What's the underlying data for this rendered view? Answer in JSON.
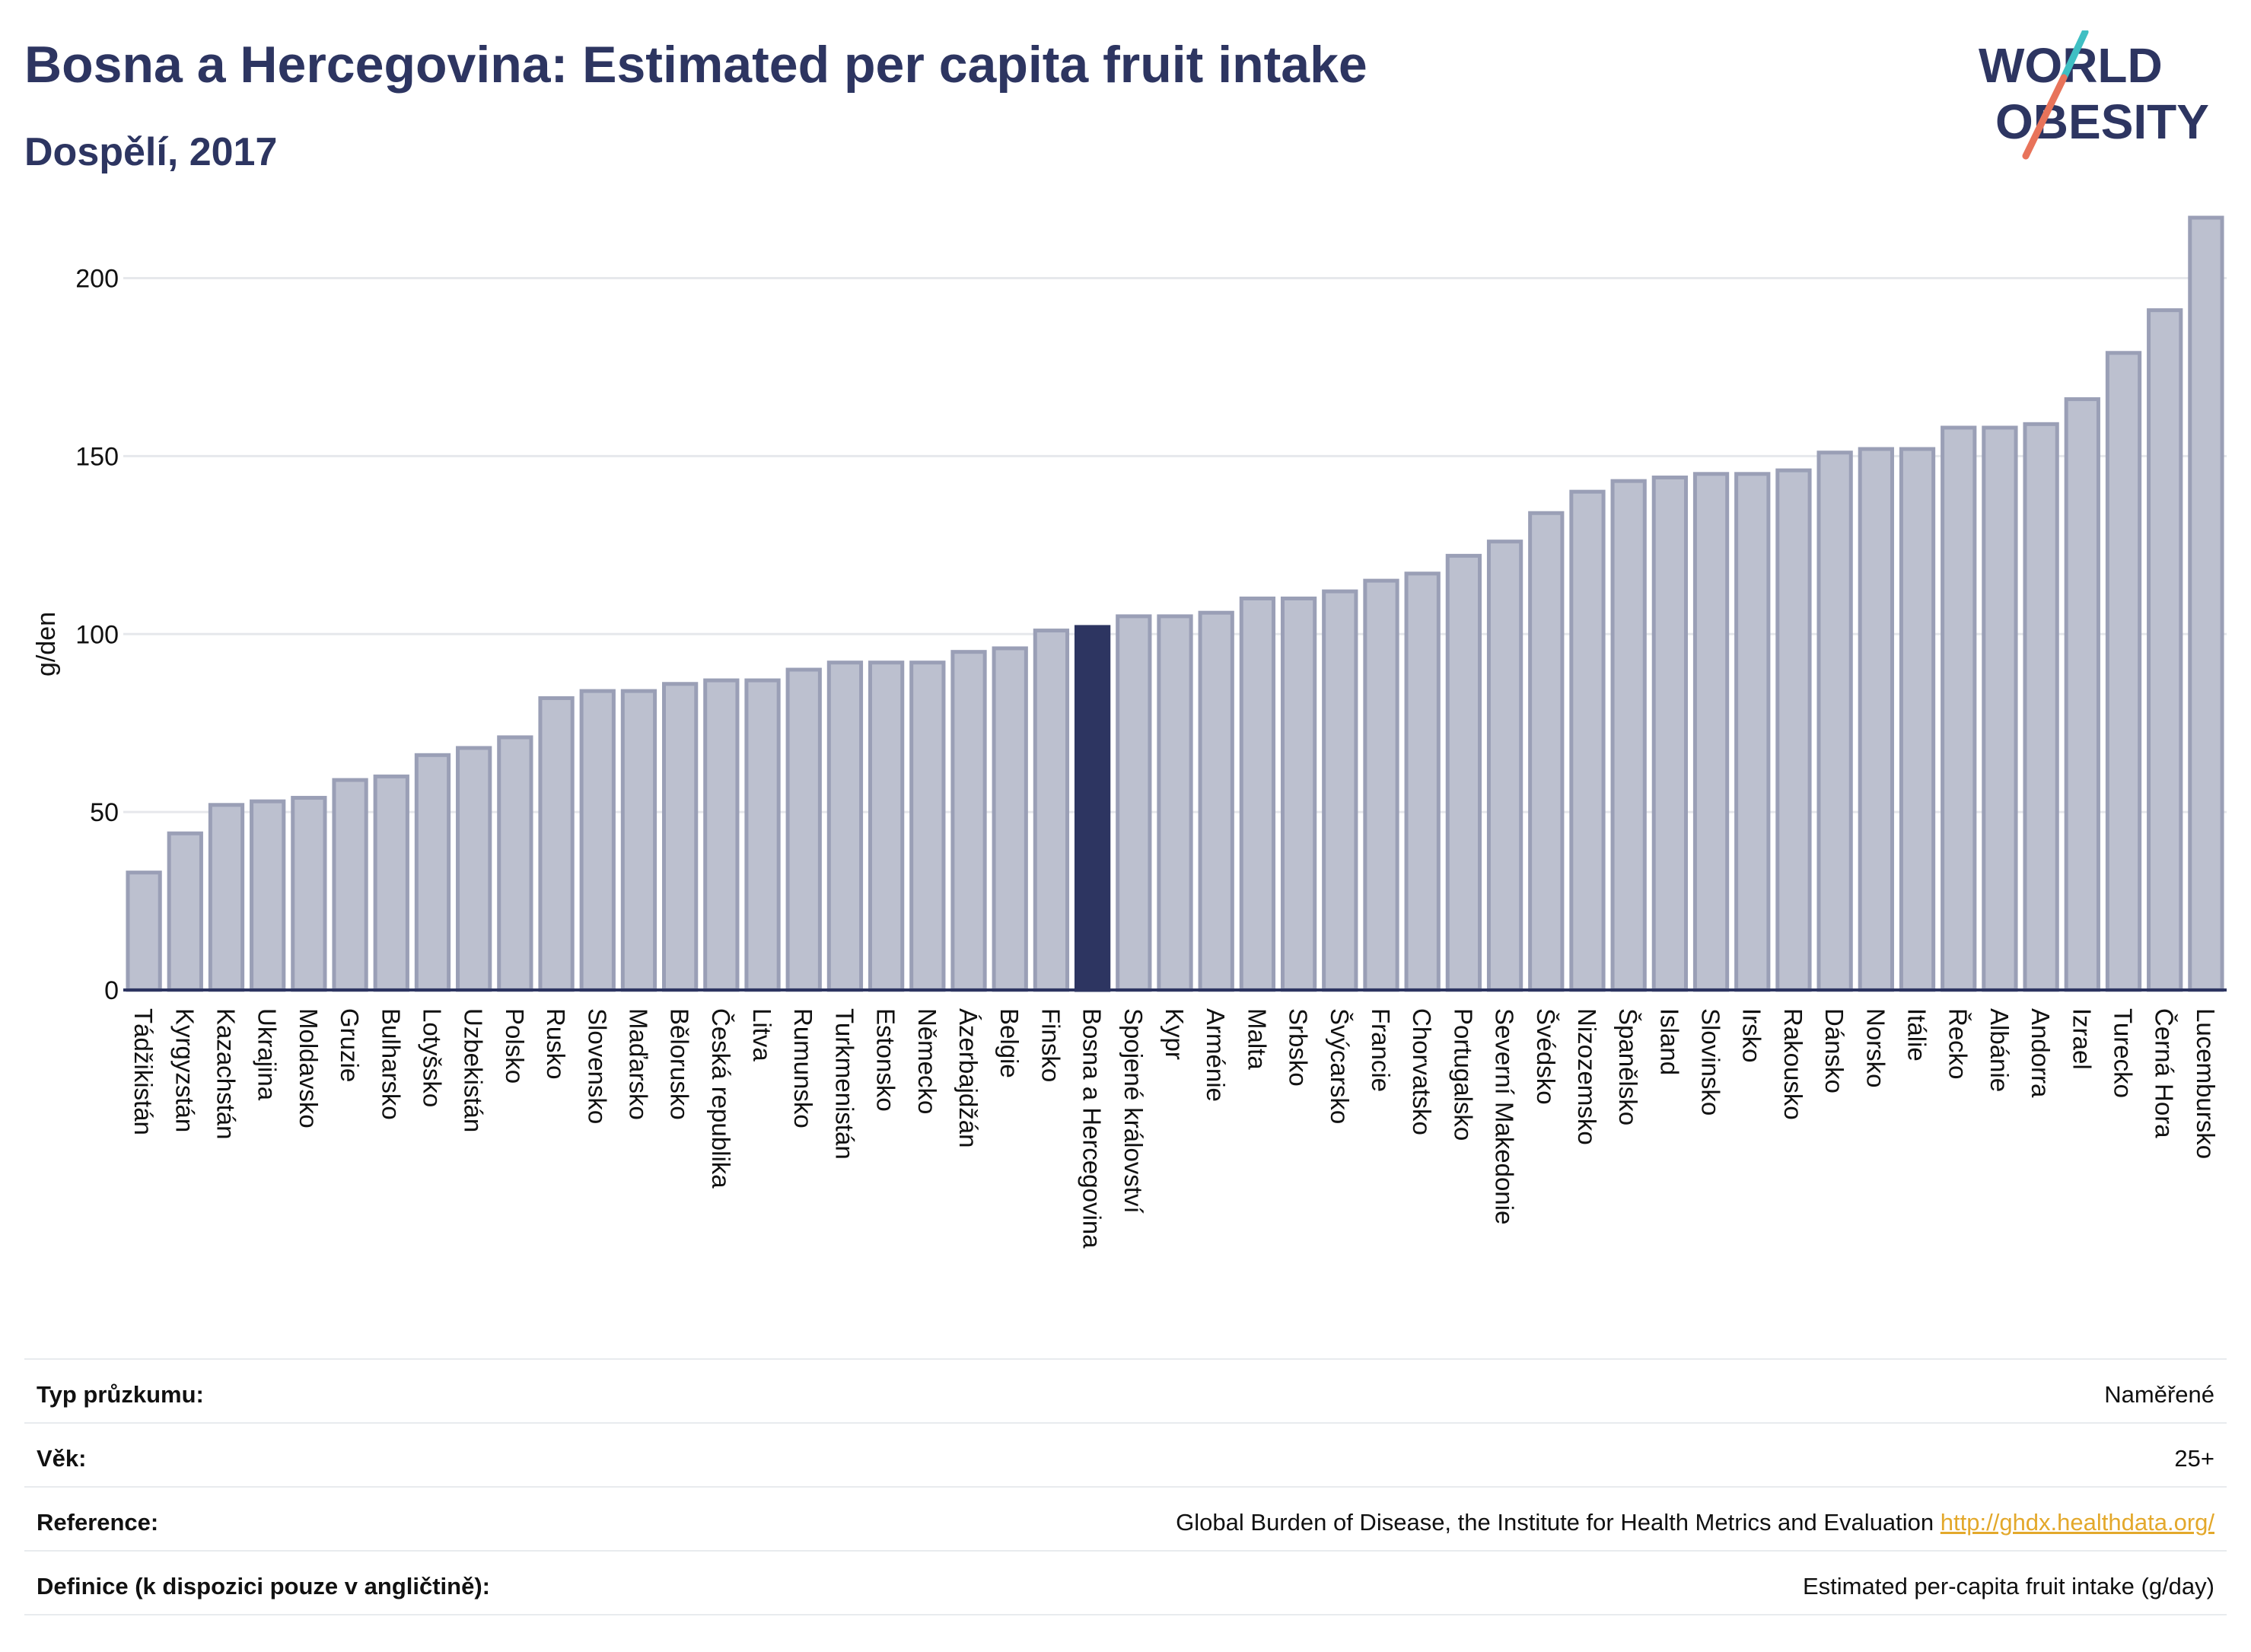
{
  "header": {
    "title": "Bosna a Hercegovina: Estimated per capita fruit intake",
    "subtitle": "Dospělí, 2017"
  },
  "logo": {
    "line1": "WORLD",
    "line2": "OBESITY",
    "colors": {
      "text": "#2d3561",
      "accent1": "#3fbfc3",
      "accent2": "#e8735a"
    }
  },
  "colors": {
    "bar_fill": "#bcc0cf",
    "bar_stroke": "#9a9fb6",
    "highlight": "#2d3561",
    "gridline": "#e6e8ec",
    "axis": "#2d3561"
  },
  "chart_data": {
    "type": "bar",
    "ylabel": "g/den",
    "ylim": [
      0,
      220
    ],
    "yticks": [
      0,
      50,
      100,
      150,
      200
    ],
    "grid": true,
    "highlight": "Bosna a Hercegovina",
    "categories": [
      "Tádžikistán",
      "Kyrgyzstán",
      "Kazachstán",
      "Ukrajina",
      "Moldavsko",
      "Gruzie",
      "Bulharsko",
      "Lotyšsko",
      "Uzbekistán",
      "Polsko",
      "Rusko",
      "Slovensko",
      "Maďarsko",
      "Bělorusko",
      "Česká republika",
      "Litva",
      "Rumunsko",
      "Turkmenistán",
      "Estonsko",
      "Německo",
      "Ázerbajdžán",
      "Belgie",
      "Finsko",
      "Bosna a Hercegovina",
      "Spojené království",
      "Kypr",
      "Arménie",
      "Malta",
      "Srbsko",
      "Švýcarsko",
      "Francie",
      "Chorvatsko",
      "Portugalsko",
      "Severní Makedonie",
      "Švédsko",
      "Nizozemsko",
      "Španělsko",
      "Island",
      "Slovinsko",
      "Irsko",
      "Rakousko",
      "Dánsko",
      "Norsko",
      "Itálie",
      "Řecko",
      "Albánie",
      "Andorra",
      "Izrael",
      "Turecko",
      "Černá Hora",
      "Lucembursko"
    ],
    "values": [
      33,
      44,
      52,
      53,
      54,
      59,
      60,
      66,
      68,
      71,
      82,
      84,
      84,
      86,
      87,
      87,
      90,
      92,
      92,
      92,
      95,
      96,
      101,
      102,
      105,
      105,
      106,
      110,
      110,
      112,
      115,
      117,
      122,
      126,
      134,
      140,
      143,
      144,
      145,
      145,
      146,
      151,
      152,
      152,
      158,
      158,
      159,
      166,
      179,
      191,
      217
    ]
  },
  "meta": [
    {
      "key": "Typ průzkumu:",
      "value": "Naměřené",
      "link": ""
    },
    {
      "key": "Věk:",
      "value": "25+",
      "link": ""
    },
    {
      "key": "Reference:",
      "value": "Global Burden of Disease, the Institute for Health Metrics and Evaluation",
      "link": "http://ghdx.healthdata.org/"
    },
    {
      "key": "Definice (k dispozici pouze v angličtině):",
      "value": "Estimated per-capita fruit intake (g/day)",
      "link": ""
    }
  ]
}
